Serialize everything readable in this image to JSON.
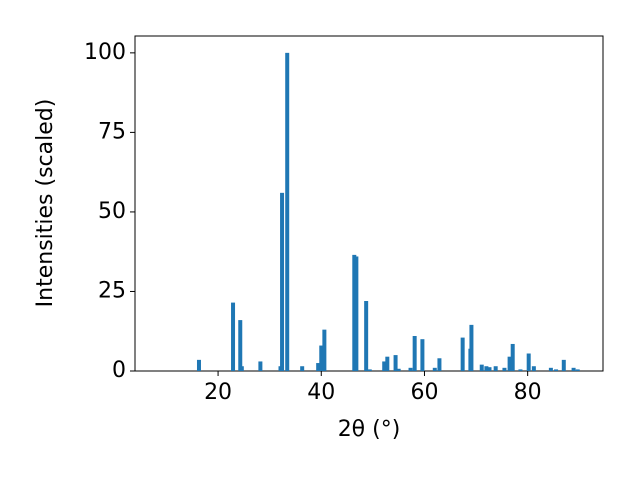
{
  "chart_data": {
    "type": "bar",
    "xlabel": "2θ (°)",
    "ylabel": "Intensities (scaled)",
    "x": [
      16.3,
      22.9,
      24.3,
      24.6,
      28.2,
      32.1,
      32.4,
      33.4,
      36.3,
      39.4,
      40.0,
      40.6,
      46.4,
      46.8,
      48.7,
      49.4,
      52.2,
      52.8,
      54.4,
      55.0,
      57.3,
      58.1,
      59.6,
      62.0,
      62.9,
      67.4,
      68.9,
      69.1,
      71.1,
      72.0,
      72.6,
      73.8,
      75.5,
      76.5,
      77.1,
      78.6,
      80.2,
      81.2,
      84.5,
      85.5,
      87.0,
      88.9,
      89.7
    ],
    "values": [
      3.5,
      21.5,
      16,
      1.5,
      3,
      1.5,
      56,
      100,
      1.5,
      2.5,
      8,
      13,
      36.5,
      36,
      22,
      0.5,
      3,
      4.5,
      5,
      0.7,
      1,
      11,
      10,
      1,
      4,
      10.5,
      7,
      14.5,
      2,
      1.5,
      1.2,
      1.5,
      1,
      4.5,
      8.5,
      0.5,
      5.5,
      1.5,
      1,
      0.5,
      3.5,
      1,
      0.5
    ],
    "color": "#1f77b4",
    "xlim": [
      3.9,
      94.6
    ],
    "ylim": [
      0,
      105.3
    ],
    "xticks": [
      20,
      40,
      60,
      80
    ],
    "yticks": [
      0,
      25,
      50,
      75,
      100
    ]
  }
}
